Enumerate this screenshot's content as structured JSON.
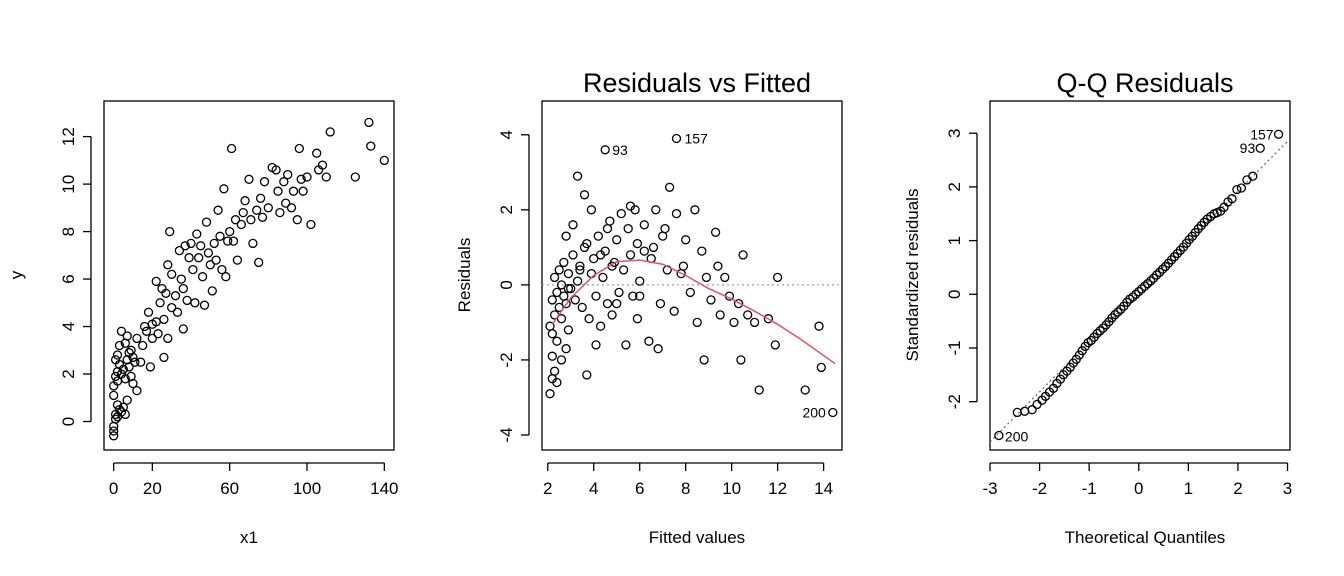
{
  "chart_data": [
    {
      "type": "scatter",
      "title": "",
      "xlabel": "x1",
      "ylabel": "y",
      "xlim": [
        -5,
        145
      ],
      "ylim": [
        -1.2,
        13.5
      ],
      "xticks": [
        0,
        20,
        60,
        100,
        140
      ],
      "yticks": [
        0,
        2,
        4,
        6,
        8,
        10,
        12
      ],
      "grid": false,
      "points": [
        [
          0,
          -0.6
        ],
        [
          0,
          -0.4
        ],
        [
          0,
          -0.2
        ],
        [
          1,
          0.1
        ],
        [
          1,
          0.3
        ],
        [
          2,
          0.2
        ],
        [
          2,
          0.7
        ],
        [
          3,
          0.5
        ],
        [
          4,
          0.4
        ],
        [
          5,
          0.6
        ],
        [
          6,
          0.3
        ],
        [
          7,
          0.9
        ],
        [
          0,
          1.1
        ],
        [
          0,
          1.5
        ],
        [
          1,
          1.9
        ],
        [
          2,
          1.7
        ],
        [
          2,
          2.1
        ],
        [
          3,
          2.4
        ],
        [
          4,
          2.0
        ],
        [
          5,
          2.2
        ],
        [
          6,
          1.8
        ],
        [
          7,
          2.6
        ],
        [
          8,
          2.3
        ],
        [
          9,
          3.0
        ],
        [
          10,
          2.7
        ],
        [
          10,
          1.6
        ],
        [
          1,
          2.6
        ],
        [
          2,
          2.8
        ],
        [
          3,
          3.2
        ],
        [
          4,
          3.8
        ],
        [
          6,
          3.3
        ],
        [
          7,
          3.6
        ],
        [
          8,
          2.9
        ],
        [
          9,
          1.9
        ],
        [
          11,
          2.5
        ],
        [
          12,
          3.5
        ],
        [
          12,
          1.3
        ],
        [
          14,
          2.5
        ],
        [
          15,
          3.2
        ],
        [
          16,
          4.0
        ],
        [
          17,
          3.8
        ],
        [
          18,
          4.6
        ],
        [
          19,
          2.3
        ],
        [
          20,
          3.5
        ],
        [
          20,
          4.1
        ],
        [
          22,
          4.2
        ],
        [
          22,
          5.9
        ],
        [
          23,
          3.7
        ],
        [
          24,
          5.0
        ],
        [
          25,
          5.6
        ],
        [
          26,
          4.3
        ],
        [
          26,
          2.7
        ],
        [
          27,
          5.4
        ],
        [
          28,
          6.6
        ],
        [
          28,
          3.5
        ],
        [
          29,
          8.0
        ],
        [
          30,
          4.8
        ],
        [
          30,
          6.2
        ],
        [
          32,
          5.3
        ],
        [
          33,
          4.6
        ],
        [
          34,
          7.2
        ],
        [
          35,
          6.0
        ],
        [
          36,
          5.6
        ],
        [
          36,
          3.9
        ],
        [
          37,
          7.4
        ],
        [
          38,
          5.1
        ],
        [
          39,
          6.9
        ],
        [
          40,
          7.5
        ],
        [
          41,
          6.4
        ],
        [
          42,
          5.0
        ],
        [
          43,
          7.9
        ],
        [
          44,
          6.9
        ],
        [
          45,
          7.4
        ],
        [
          46,
          6.1
        ],
        [
          47,
          4.9
        ],
        [
          48,
          8.4
        ],
        [
          49,
          7.1
        ],
        [
          50,
          6.6
        ],
        [
          51,
          5.5
        ],
        [
          52,
          7.5
        ],
        [
          53,
          6.8
        ],
        [
          54,
          8.9
        ],
        [
          55,
          7.8
        ],
        [
          56,
          6.4
        ],
        [
          57,
          9.8
        ],
        [
          58,
          6.1
        ],
        [
          59,
          7.6
        ],
        [
          60,
          8.0
        ],
        [
          61,
          11.5
        ],
        [
          62,
          7.6
        ],
        [
          63,
          8.5
        ],
        [
          64,
          6.8
        ],
        [
          66,
          8.3
        ],
        [
          67,
          8.8
        ],
        [
          68,
          9.3
        ],
        [
          70,
          10.2
        ],
        [
          71,
          8.5
        ],
        [
          72,
          7.5
        ],
        [
          74,
          8.9
        ],
        [
          75,
          6.7
        ],
        [
          76,
          9.4
        ],
        [
          77,
          8.6
        ],
        [
          78,
          10.1
        ],
        [
          80,
          9.0
        ],
        [
          82,
          10.7
        ],
        [
          84,
          10.6
        ],
        [
          85,
          9.7
        ],
        [
          86,
          8.8
        ],
        [
          88,
          10.1
        ],
        [
          89,
          9.2
        ],
        [
          90,
          10.4
        ],
        [
          92,
          9.0
        ],
        [
          93,
          9.7
        ],
        [
          95,
          8.5
        ],
        [
          96,
          11.5
        ],
        [
          97,
          10.2
        ],
        [
          98,
          9.7
        ],
        [
          100,
          10.3
        ],
        [
          102,
          8.3
        ],
        [
          105,
          11.3
        ],
        [
          106,
          10.6
        ],
        [
          108,
          10.8
        ],
        [
          110,
          10.3
        ],
        [
          112,
          12.2
        ],
        [
          125,
          10.3
        ],
        [
          132,
          12.6
        ],
        [
          133,
          11.6
        ],
        [
          140,
          11.0
        ]
      ]
    },
    {
      "type": "scatter",
      "title": "Residuals vs Fitted",
      "xlabel": "Fitted values",
      "ylabel": "Residuals",
      "xlim": [
        1.75,
        14.8
      ],
      "ylim": [
        -4.4,
        4.9
      ],
      "xticks": [
        2,
        4,
        6,
        8,
        10,
        12,
        14
      ],
      "yticks": [
        -4,
        -2,
        0,
        2,
        4
      ],
      "grid": false,
      "reference_line_y": 0,
      "smoother_color": "#DF536B",
      "smoother": [
        [
          2.2,
          -1.05
        ],
        [
          3,
          -0.35
        ],
        [
          4,
          0.25
        ],
        [
          5,
          0.62
        ],
        [
          6,
          0.66
        ],
        [
          7,
          0.55
        ],
        [
          8,
          0.25
        ],
        [
          9,
          -0.1
        ],
        [
          10,
          -0.38
        ],
        [
          11,
          -0.7
        ],
        [
          12,
          -1.05
        ],
        [
          13,
          -1.45
        ],
        [
          14.5,
          -2.1
        ]
      ],
      "labels": [
        {
          "text": "157",
          "x": 7.6,
          "y": 3.9
        },
        {
          "text": "93",
          "x": 4.5,
          "y": 3.6
        },
        {
          "text": "200",
          "x": 14.4,
          "y": -3.4
        }
      ],
      "points": [
        [
          2.1,
          -2.9
        ],
        [
          2.2,
          -2.5
        ],
        [
          2.3,
          -2.3
        ],
        [
          2.2,
          -1.9
        ],
        [
          2.4,
          -1.5
        ],
        [
          2.1,
          -1.1
        ],
        [
          2.3,
          -0.8
        ],
        [
          2.5,
          -0.6
        ],
        [
          2.2,
          -0.4
        ],
        [
          2.4,
          -0.2
        ],
        [
          2.6,
          0.0
        ],
        [
          2.3,
          0.2
        ],
        [
          2.5,
          0.4
        ],
        [
          2.7,
          -0.3
        ],
        [
          2.8,
          -0.5
        ],
        [
          2.6,
          -0.9
        ],
        [
          2.9,
          -1.2
        ],
        [
          2.4,
          -2.6
        ],
        [
          2.6,
          -2.0
        ],
        [
          2.8,
          -1.7
        ],
        [
          2.2,
          -1.3
        ],
        [
          2.7,
          0.6
        ],
        [
          2.9,
          0.3
        ],
        [
          3.0,
          -0.1
        ],
        [
          3.1,
          0.8
        ],
        [
          3.2,
          -0.4
        ],
        [
          3.3,
          0.1
        ],
        [
          3.4,
          0.5
        ],
        [
          3.5,
          -0.6
        ],
        [
          3.6,
          1.0
        ],
        [
          3.7,
          -2.4
        ],
        [
          3.8,
          -0.9
        ],
        [
          3.9,
          0.3
        ],
        [
          4.0,
          0.7
        ],
        [
          4.1,
          -0.3
        ],
        [
          4.2,
          1.3
        ],
        [
          4.3,
          -1.1
        ],
        [
          4.4,
          0.2
        ],
        [
          4.5,
          0.9
        ],
        [
          4.6,
          -0.5
        ],
        [
          4.7,
          1.7
        ],
        [
          4.8,
          -0.8
        ],
        [
          4.9,
          0.6
        ],
        [
          5.0,
          1.2
        ],
        [
          5.1,
          -0.2
        ],
        [
          5.2,
          1.9
        ],
        [
          5.3,
          0.4
        ],
        [
          5.4,
          -1.6
        ],
        [
          5.5,
          1.5
        ],
        [
          5.6,
          0.8
        ],
        [
          5.7,
          -0.3
        ],
        [
          5.8,
          2.0
        ],
        [
          5.9,
          1.1
        ],
        [
          6.0,
          0.1
        ],
        [
          6.2,
          1.6
        ],
        [
          6.4,
          -1.5
        ],
        [
          6.5,
          0.7
        ],
        [
          6.7,
          2.0
        ],
        [
          6.9,
          -0.5
        ],
        [
          7.0,
          1.3
        ],
        [
          7.2,
          0.4
        ],
        [
          7.3,
          2.6
        ],
        [
          7.5,
          -0.7
        ],
        [
          7.6,
          1.9
        ],
        [
          7.8,
          0.3
        ],
        [
          8.0,
          1.2
        ],
        [
          8.2,
          -0.2
        ],
        [
          8.4,
          2.0
        ],
        [
          8.5,
          -1.0
        ],
        [
          8.7,
          0.9
        ],
        [
          8.9,
          0.2
        ],
        [
          9.1,
          -0.4
        ],
        [
          9.3,
          1.4
        ],
        [
          9.5,
          -0.8
        ],
        [
          9.7,
          0.2
        ],
        [
          9.9,
          -0.3
        ],
        [
          10.1,
          -1.0
        ],
        [
          10.3,
          -0.5
        ],
        [
          10.5,
          0.8
        ],
        [
          10.7,
          -0.8
        ],
        [
          11.0,
          -1.0
        ],
        [
          11.2,
          -2.8
        ],
        [
          11.6,
          -0.9
        ],
        [
          11.9,
          -1.6
        ],
        [
          12.0,
          0.2
        ],
        [
          13.2,
          -2.8
        ],
        [
          13.8,
          -1.1
        ],
        [
          13.9,
          -2.2
        ],
        [
          14.4,
          -3.4
        ],
        [
          4.5,
          3.6
        ],
        [
          7.6,
          3.9
        ],
        [
          3.3,
          2.9
        ],
        [
          3.6,
          2.4
        ],
        [
          3.9,
          2.0
        ],
        [
          4.6,
          1.5
        ],
        [
          4.8,
          0.5
        ],
        [
          5.6,
          2.1
        ],
        [
          6.2,
          0.9
        ],
        [
          6.6,
          1.0
        ],
        [
          7.1,
          1.5
        ],
        [
          3.1,
          1.6
        ],
        [
          2.8,
          1.3
        ],
        [
          3.4,
          0.4
        ],
        [
          4.1,
          -1.6
        ],
        [
          5.0,
          -0.5
        ],
        [
          5.9,
          -0.9
        ],
        [
          6.8,
          -1.7
        ],
        [
          7.9,
          0.5
        ],
        [
          8.8,
          -2.0
        ],
        [
          9.4,
          0.5
        ],
        [
          10.4,
          -2.0
        ],
        [
          3.7,
          1.1
        ],
        [
          4.3,
          0.8
        ],
        [
          2.9,
          -0.1
        ],
        [
          6.0,
          -0.3
        ]
      ]
    },
    {
      "type": "scatter",
      "title": "Q-Q Residuals",
      "xlabel": "Theoretical Quantiles",
      "ylabel": "Standardized residuals",
      "xlim": [
        -3.0,
        3.05
      ],
      "ylim": [
        -2.9,
        3.6
      ],
      "xticks": [
        -3,
        -2,
        -1,
        0,
        1,
        2,
        3
      ],
      "yticks": [
        -2,
        -1,
        0,
        1,
        2,
        3
      ],
      "grid": false,
      "reference_line": [
        [
          -3.0,
          -2.75
        ],
        [
          3.0,
          2.85
        ]
      ],
      "labels": [
        {
          "text": "157",
          "x": 2.82,
          "y": 2.98
        },
        {
          "text": "93",
          "x": 2.45,
          "y": 2.72
        },
        {
          "text": "200",
          "x": -2.82,
          "y": -2.63
        }
      ],
      "points": [
        [
          -2.82,
          -2.63
        ],
        [
          -2.45,
          -2.2
        ],
        [
          -2.3,
          -2.18
        ],
        [
          -2.15,
          -2.15
        ],
        [
          -2.05,
          -2.05
        ],
        [
          -1.95,
          -1.97
        ],
        [
          -1.88,
          -1.9
        ],
        [
          -1.8,
          -1.82
        ],
        [
          -1.72,
          -1.75
        ],
        [
          -1.65,
          -1.66
        ],
        [
          -1.58,
          -1.58
        ],
        [
          -1.52,
          -1.5
        ],
        [
          -1.45,
          -1.43
        ],
        [
          -1.38,
          -1.36
        ],
        [
          -1.32,
          -1.28
        ],
        [
          -1.26,
          -1.21
        ],
        [
          -1.2,
          -1.13
        ],
        [
          -1.14,
          -1.05
        ],
        [
          -1.08,
          -0.97
        ],
        [
          -1.02,
          -0.9
        ],
        [
          -0.96,
          -0.86
        ],
        [
          -0.9,
          -0.8
        ],
        [
          -0.84,
          -0.73
        ],
        [
          -0.78,
          -0.68
        ],
        [
          -0.72,
          -0.63
        ],
        [
          -0.66,
          -0.57
        ],
        [
          -0.6,
          -0.51
        ],
        [
          -0.54,
          -0.44
        ],
        [
          -0.48,
          -0.38
        ],
        [
          -0.42,
          -0.33
        ],
        [
          -0.36,
          -0.28
        ],
        [
          -0.3,
          -0.22
        ],
        [
          -0.24,
          -0.15
        ],
        [
          -0.18,
          -0.09
        ],
        [
          -0.12,
          -0.05
        ],
        [
          -0.06,
          0.0
        ],
        [
          0.0,
          0.05
        ],
        [
          0.06,
          0.1
        ],
        [
          0.12,
          0.15
        ],
        [
          0.18,
          0.2
        ],
        [
          0.24,
          0.25
        ],
        [
          0.3,
          0.3
        ],
        [
          0.36,
          0.36
        ],
        [
          0.42,
          0.41
        ],
        [
          0.48,
          0.47
        ],
        [
          0.54,
          0.52
        ],
        [
          0.6,
          0.58
        ],
        [
          0.66,
          0.64
        ],
        [
          0.72,
          0.7
        ],
        [
          0.78,
          0.76
        ],
        [
          0.84,
          0.82
        ],
        [
          0.9,
          0.88
        ],
        [
          0.96,
          0.95
        ],
        [
          1.02,
          1.02
        ],
        [
          1.08,
          1.08
        ],
        [
          1.14,
          1.15
        ],
        [
          1.2,
          1.22
        ],
        [
          1.26,
          1.28
        ],
        [
          1.32,
          1.34
        ],
        [
          1.38,
          1.4
        ],
        [
          1.45,
          1.45
        ],
        [
          1.52,
          1.5
        ],
        [
          1.58,
          1.52
        ],
        [
          1.65,
          1.55
        ],
        [
          1.72,
          1.62
        ],
        [
          1.8,
          1.72
        ],
        [
          1.88,
          1.78
        ],
        [
          1.98,
          1.95
        ],
        [
          2.07,
          1.98
        ],
        [
          2.18,
          2.13
        ],
        [
          2.3,
          2.2
        ],
        [
          2.45,
          2.72
        ],
        [
          2.82,
          2.98
        ]
      ]
    }
  ]
}
